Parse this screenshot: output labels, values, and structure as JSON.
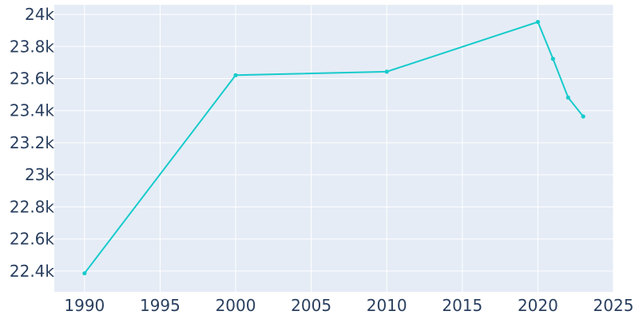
{
  "chart_data": {
    "type": "line",
    "title": "",
    "xlabel": "",
    "ylabel": "",
    "x": [
      1990,
      2000,
      2010,
      2020,
      2021,
      2022,
      2023
    ],
    "series": [
      {
        "values": [
          22386,
          23621,
          23643,
          23953,
          23723,
          23482,
          23364
        ]
      }
    ],
    "xlim": [
      1988,
      2025
    ],
    "ylim": [
      22270,
      24060
    ],
    "x_ticks": [
      1990,
      1995,
      2000,
      2005,
      2010,
      2015,
      2020,
      2025
    ],
    "x_tick_labels": [
      "1990",
      "1995",
      "2000",
      "2005",
      "2010",
      "2015",
      "2020",
      "2025"
    ],
    "y_ticks": [
      22400,
      22600,
      22800,
      23000,
      23200,
      23400,
      23600,
      23800,
      24000
    ],
    "y_tick_labels": [
      "22.4k",
      "22.6k",
      "22.8k",
      "23k",
      "23.2k",
      "23.4k",
      "23.6k",
      "23.8k",
      "24k"
    ],
    "grid": true,
    "legend": "none",
    "colors": {
      "line": "#17cbcb",
      "plot_bg": "#e5ecf6",
      "grid": "#ffffff",
      "text": "#2a3f5f"
    }
  }
}
